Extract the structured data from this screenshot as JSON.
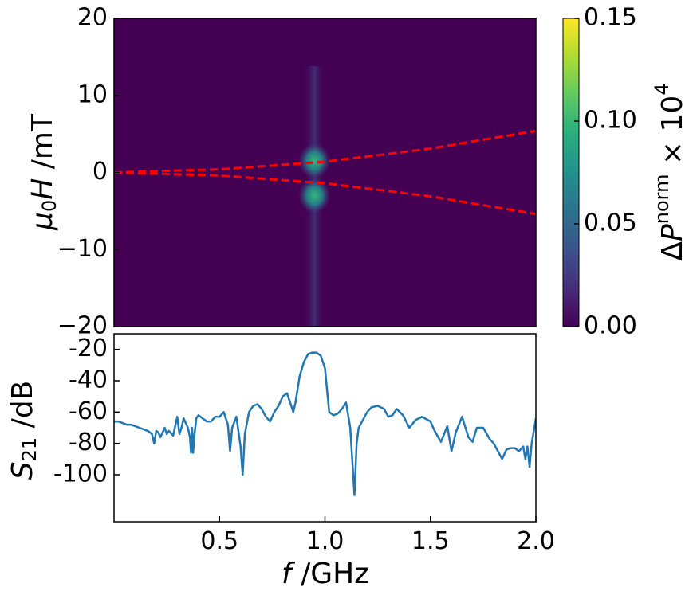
{
  "chart_data": [
    {
      "type": "heatmap",
      "colormap": "viridis",
      "ylabel": "μ0H /mT",
      "xlim": [
        0.0,
        2.0
      ],
      "ylim": [
        -20,
        20
      ],
      "yticks": [
        "20",
        "10",
        "0",
        "−10",
        "−20"
      ],
      "yticks_values": [
        20,
        10,
        0,
        -10,
        -20
      ],
      "colorbar": {
        "label": "ΔP^norm × 10^4",
        "range": [
          0.0,
          0.15
        ],
        "ticks": [
          "0.15",
          "0.10",
          "0.05",
          "0.00"
        ],
        "ticks_values": [
          0.15,
          0.1,
          0.05,
          0.0
        ]
      },
      "signal": {
        "band_center_f": 0.95,
        "hotspots": [
          {
            "f": 0.95,
            "h": 1.5,
            "value": 0.09
          },
          {
            "f": 0.95,
            "h": -3.0,
            "value": 0.1
          }
        ]
      },
      "dashed_lines": {
        "color": "#ff0000",
        "upper": {
          "f": [
            0.0,
            0.5,
            1.0,
            1.5,
            2.0
          ],
          "h": [
            0.0,
            0.4,
            1.4,
            3.1,
            5.4
          ]
        },
        "lower": {
          "f": [
            0.0,
            0.5,
            1.0,
            1.5,
            2.0
          ],
          "h": [
            0.0,
            -0.4,
            -1.4,
            -3.1,
            -5.4
          ]
        }
      }
    },
    {
      "type": "line",
      "ylabel": "S21 /dB",
      "xlabel": "f /GHz",
      "xlim": [
        0.0,
        2.0
      ],
      "ylim": [
        -130,
        -10
      ],
      "yticks": [
        "-20",
        "-40",
        "-60",
        "-80",
        "-100"
      ],
      "yticks_values": [
        -20,
        -40,
        -60,
        -80,
        -100
      ],
      "xticks": [
        "0.5",
        "1.0",
        "1.5",
        "2.0"
      ],
      "xticks_values": [
        0.5,
        1.0,
        1.5,
        2.0
      ],
      "series_color": "#1f77b4",
      "x": [
        0.0,
        0.02,
        0.04,
        0.06,
        0.08,
        0.1,
        0.12,
        0.14,
        0.16,
        0.18,
        0.19,
        0.2,
        0.21,
        0.22,
        0.24,
        0.25,
        0.26,
        0.28,
        0.3,
        0.31,
        0.32,
        0.33,
        0.35,
        0.36,
        0.365,
        0.37,
        0.375,
        0.38,
        0.39,
        0.4,
        0.42,
        0.44,
        0.46,
        0.48,
        0.5,
        0.52,
        0.54,
        0.55,
        0.56,
        0.58,
        0.6,
        0.61,
        0.62,
        0.64,
        0.66,
        0.68,
        0.7,
        0.72,
        0.74,
        0.76,
        0.78,
        0.8,
        0.82,
        0.84,
        0.85,
        0.86,
        0.88,
        0.9,
        0.92,
        0.94,
        0.96,
        0.98,
        1.0,
        1.02,
        1.04,
        1.06,
        1.08,
        1.1,
        1.12,
        1.13,
        1.14,
        1.15,
        1.16,
        1.18,
        1.2,
        1.22,
        1.25,
        1.28,
        1.3,
        1.32,
        1.34,
        1.37,
        1.4,
        1.43,
        1.46,
        1.5,
        1.52,
        1.55,
        1.58,
        1.6,
        1.62,
        1.65,
        1.68,
        1.7,
        1.72,
        1.75,
        1.78,
        1.8,
        1.82,
        1.84,
        1.86,
        1.88,
        1.9,
        1.92,
        1.94,
        1.95,
        1.96,
        1.97,
        1.98,
        1.99,
        2.0
      ],
      "y": [
        -66,
        -66,
        -67,
        -68,
        -68,
        -69,
        -70,
        -71,
        -72,
        -74,
        -80,
        -72,
        -73,
        -76,
        -70,
        -74,
        -72,
        -75,
        -63,
        -74,
        -70,
        -64,
        -70,
        -76,
        -86,
        -70,
        -86,
        -76,
        -64,
        -62,
        -64,
        -66,
        -66,
        -63,
        -63,
        -60,
        -68,
        -85,
        -70,
        -63,
        -82,
        -100,
        -74,
        -60,
        -56,
        -55,
        -58,
        -63,
        -66,
        -60,
        -56,
        -50,
        -48,
        -56,
        -60,
        -54,
        -37,
        -28,
        -23,
        -22,
        -22,
        -24,
        -32,
        -60,
        -62,
        -61,
        -58,
        -54,
        -70,
        -92,
        -113,
        -80,
        -70,
        -65,
        -60,
        -57,
        -56,
        -58,
        -63,
        -62,
        -58,
        -62,
        -70,
        -65,
        -63,
        -66,
        -72,
        -79,
        -69,
        -85,
        -73,
        -63,
        -76,
        -79,
        -70,
        -70,
        -77,
        -80,
        -85,
        -90,
        -84,
        -83,
        -83,
        -85,
        -82,
        -90,
        -82,
        -95,
        -80,
        -72,
        -64
      ]
    }
  ]
}
